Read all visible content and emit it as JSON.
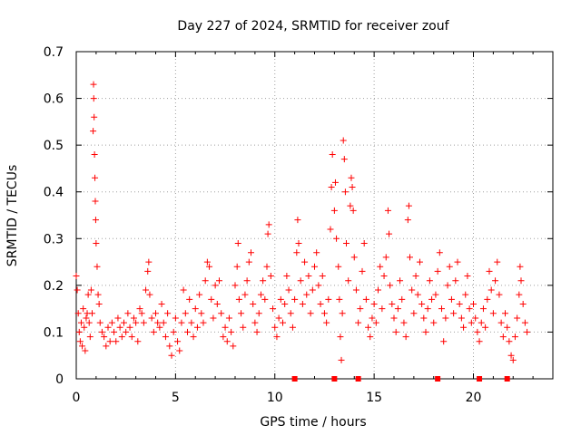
{
  "chart_data": {
    "type": "scatter",
    "title": "Day 227 of 2024, SRMTID for receiver zouf",
    "xlabel": "GPS time / hours",
    "ylabel": "SRMTID / TECUs",
    "xlim": [
      0,
      24
    ],
    "ylim": [
      0,
      0.7
    ],
    "x_ticks": [
      0,
      5,
      10,
      15,
      20
    ],
    "y_ticks": [
      0,
      0.1,
      0.2,
      0.3,
      0.4,
      0.5,
      0.6,
      0.7
    ],
    "x_tick_labels": [
      "0",
      "5",
      "10",
      "15",
      "20"
    ],
    "y_tick_labels": [
      "0",
      "0.1",
      "0.2",
      "0.3",
      "0.4",
      "0.5",
      "0.6",
      "0.7"
    ],
    "grid": true,
    "marker": "plus",
    "color": "#ff0000",
    "series": [
      {
        "name": "SRMTID",
        "points": [
          [
            0.0,
            0.22
          ],
          [
            0.05,
            0.19
          ],
          [
            0.1,
            0.14
          ],
          [
            0.15,
            0.1
          ],
          [
            0.2,
            0.08
          ],
          [
            0.25,
            0.12
          ],
          [
            0.3,
            0.07
          ],
          [
            0.35,
            0.15
          ],
          [
            0.4,
            0.11
          ],
          [
            0.45,
            0.06
          ],
          [
            0.5,
            0.13
          ],
          [
            0.55,
            0.14
          ],
          [
            0.6,
            0.18
          ],
          [
            0.65,
            0.12
          ],
          [
            0.7,
            0.09
          ],
          [
            0.75,
            0.19
          ],
          [
            0.8,
            0.14
          ],
          [
            0.85,
            0.53
          ],
          [
            0.87,
            0.63
          ],
          [
            0.88,
            0.6
          ],
          [
            0.9,
            0.56
          ],
          [
            0.92,
            0.48
          ],
          [
            0.94,
            0.43
          ],
          [
            0.96,
            0.38
          ],
          [
            0.98,
            0.34
          ],
          [
            1.0,
            0.29
          ],
          [
            1.05,
            0.24
          ],
          [
            1.1,
            0.18
          ],
          [
            1.15,
            0.16
          ],
          [
            1.2,
            0.12
          ],
          [
            1.3,
            0.1
          ],
          [
            1.4,
            0.09
          ],
          [
            1.5,
            0.07
          ],
          [
            1.6,
            0.11
          ],
          [
            1.7,
            0.08
          ],
          [
            1.8,
            0.12
          ],
          [
            1.9,
            0.1
          ],
          [
            2.0,
            0.08
          ],
          [
            2.1,
            0.13
          ],
          [
            2.2,
            0.11
          ],
          [
            2.3,
            0.09
          ],
          [
            2.4,
            0.12
          ],
          [
            2.5,
            0.1
          ],
          [
            2.6,
            0.14
          ],
          [
            2.7,
            0.11
          ],
          [
            2.8,
            0.09
          ],
          [
            2.9,
            0.13
          ],
          [
            3.0,
            0.12
          ],
          [
            3.1,
            0.08
          ],
          [
            3.2,
            0.15
          ],
          [
            3.3,
            0.14
          ],
          [
            3.4,
            0.12
          ],
          [
            3.5,
            0.19
          ],
          [
            3.6,
            0.23
          ],
          [
            3.65,
            0.25
          ],
          [
            3.7,
            0.18
          ],
          [
            3.8,
            0.13
          ],
          [
            3.9,
            0.1
          ],
          [
            4.0,
            0.14
          ],
          [
            4.1,
            0.12
          ],
          [
            4.2,
            0.11
          ],
          [
            4.3,
            0.16
          ],
          [
            4.4,
            0.12
          ],
          [
            4.5,
            0.09
          ],
          [
            4.6,
            0.14
          ],
          [
            4.7,
            0.07
          ],
          [
            4.8,
            0.05
          ],
          [
            4.9,
            0.1
          ],
          [
            5.0,
            0.13
          ],
          [
            5.1,
            0.08
          ],
          [
            5.2,
            0.06
          ],
          [
            5.3,
            0.12
          ],
          [
            5.4,
            0.19
          ],
          [
            5.5,
            0.14
          ],
          [
            5.6,
            0.1
          ],
          [
            5.7,
            0.17
          ],
          [
            5.8,
            0.12
          ],
          [
            5.9,
            0.09
          ],
          [
            6.0,
            0.15
          ],
          [
            6.1,
            0.11
          ],
          [
            6.2,
            0.18
          ],
          [
            6.3,
            0.14
          ],
          [
            6.4,
            0.12
          ],
          [
            6.5,
            0.21
          ],
          [
            6.6,
            0.25
          ],
          [
            6.7,
            0.24
          ],
          [
            6.8,
            0.17
          ],
          [
            6.9,
            0.13
          ],
          [
            7.0,
            0.2
          ],
          [
            7.1,
            0.16
          ],
          [
            7.2,
            0.21
          ],
          [
            7.3,
            0.14
          ],
          [
            7.4,
            0.09
          ],
          [
            7.5,
            0.11
          ],
          [
            7.6,
            0.08
          ],
          [
            7.7,
            0.13
          ],
          [
            7.8,
            0.1
          ],
          [
            7.9,
            0.07
          ],
          [
            8.0,
            0.2
          ],
          [
            8.1,
            0.24
          ],
          [
            8.15,
            0.29
          ],
          [
            8.2,
            0.17
          ],
          [
            8.3,
            0.14
          ],
          [
            8.4,
            0.11
          ],
          [
            8.5,
            0.18
          ],
          [
            8.6,
            0.21
          ],
          [
            8.7,
            0.25
          ],
          [
            8.8,
            0.27
          ],
          [
            8.9,
            0.16
          ],
          [
            9.0,
            0.12
          ],
          [
            9.1,
            0.1
          ],
          [
            9.2,
            0.14
          ],
          [
            9.3,
            0.18
          ],
          [
            9.4,
            0.21
          ],
          [
            9.5,
            0.17
          ],
          [
            9.6,
            0.24
          ],
          [
            9.65,
            0.31
          ],
          [
            9.7,
            0.33
          ],
          [
            9.8,
            0.22
          ],
          [
            9.9,
            0.15
          ],
          [
            10.0,
            0.11
          ],
          [
            10.1,
            0.09
          ],
          [
            10.2,
            0.13
          ],
          [
            10.3,
            0.17
          ],
          [
            10.4,
            0.12
          ],
          [
            10.5,
            0.16
          ],
          [
            10.6,
            0.22
          ],
          [
            10.7,
            0.19
          ],
          [
            10.8,
            0.14
          ],
          [
            10.9,
            0.11
          ],
          [
            11.0,
            0.17
          ],
          [
            11.1,
            0.27
          ],
          [
            11.15,
            0.34
          ],
          [
            11.2,
            0.29
          ],
          [
            11.3,
            0.21
          ],
          [
            11.4,
            0.16
          ],
          [
            11.5,
            0.25
          ],
          [
            11.6,
            0.18
          ],
          [
            11.7,
            0.22
          ],
          [
            11.8,
            0.14
          ],
          [
            11.9,
            0.19
          ],
          [
            12.0,
            0.24
          ],
          [
            12.1,
            0.27
          ],
          [
            12.2,
            0.2
          ],
          [
            12.3,
            0.16
          ],
          [
            12.4,
            0.22
          ],
          [
            12.5,
            0.14
          ],
          [
            12.6,
            0.12
          ],
          [
            12.7,
            0.17
          ],
          [
            12.8,
            0.32
          ],
          [
            12.85,
            0.41
          ],
          [
            12.9,
            0.48
          ],
          [
            13.0,
            0.36
          ],
          [
            13.05,
            0.42
          ],
          [
            13.1,
            0.3
          ],
          [
            13.2,
            0.24
          ],
          [
            13.25,
            0.17
          ],
          [
            13.3,
            0.09
          ],
          [
            13.35,
            0.04
          ],
          [
            13.4,
            0.14
          ],
          [
            13.45,
            0.51
          ],
          [
            13.5,
            0.47
          ],
          [
            13.55,
            0.4
          ],
          [
            13.6,
            0.29
          ],
          [
            13.7,
            0.21
          ],
          [
            13.8,
            0.37
          ],
          [
            13.85,
            0.43
          ],
          [
            13.9,
            0.41
          ],
          [
            13.95,
            0.36
          ],
          [
            14.0,
            0.26
          ],
          [
            14.1,
            0.19
          ],
          [
            14.2,
            0.12
          ],
          [
            14.3,
            0.15
          ],
          [
            14.4,
            0.23
          ],
          [
            14.5,
            0.29
          ],
          [
            14.6,
            0.17
          ],
          [
            14.7,
            0.11
          ],
          [
            14.8,
            0.09
          ],
          [
            14.9,
            0.13
          ],
          [
            15.0,
            0.16
          ],
          [
            15.1,
            0.12
          ],
          [
            15.2,
            0.19
          ],
          [
            15.3,
            0.24
          ],
          [
            15.4,
            0.15
          ],
          [
            15.5,
            0.22
          ],
          [
            15.6,
            0.26
          ],
          [
            15.7,
            0.36
          ],
          [
            15.75,
            0.31
          ],
          [
            15.8,
            0.2
          ],
          [
            15.9,
            0.16
          ],
          [
            16.0,
            0.13
          ],
          [
            16.1,
            0.1
          ],
          [
            16.2,
            0.15
          ],
          [
            16.3,
            0.21
          ],
          [
            16.4,
            0.17
          ],
          [
            16.5,
            0.12
          ],
          [
            16.6,
            0.09
          ],
          [
            16.7,
            0.34
          ],
          [
            16.75,
            0.37
          ],
          [
            16.8,
            0.26
          ],
          [
            16.9,
            0.19
          ],
          [
            17.0,
            0.14
          ],
          [
            17.1,
            0.22
          ],
          [
            17.2,
            0.18
          ],
          [
            17.3,
            0.25
          ],
          [
            17.4,
            0.16
          ],
          [
            17.5,
            0.13
          ],
          [
            17.6,
            0.1
          ],
          [
            17.7,
            0.15
          ],
          [
            17.8,
            0.21
          ],
          [
            17.9,
            0.17
          ],
          [
            18.0,
            0.12
          ],
          [
            18.1,
            0.18
          ],
          [
            18.2,
            0.23
          ],
          [
            18.3,
            0.27
          ],
          [
            18.4,
            0.15
          ],
          [
            18.5,
            0.08
          ],
          [
            18.6,
            0.13
          ],
          [
            18.7,
            0.2
          ],
          [
            18.8,
            0.24
          ],
          [
            18.9,
            0.17
          ],
          [
            19.0,
            0.14
          ],
          [
            19.1,
            0.21
          ],
          [
            19.2,
            0.25
          ],
          [
            19.3,
            0.16
          ],
          [
            19.4,
            0.13
          ],
          [
            19.5,
            0.11
          ],
          [
            19.6,
            0.18
          ],
          [
            19.7,
            0.22
          ],
          [
            19.8,
            0.15
          ],
          [
            19.9,
            0.12
          ],
          [
            20.0,
            0.16
          ],
          [
            20.1,
            0.13
          ],
          [
            20.2,
            0.1
          ],
          [
            20.3,
            0.08
          ],
          [
            20.4,
            0.12
          ],
          [
            20.5,
            0.15
          ],
          [
            20.6,
            0.11
          ],
          [
            20.7,
            0.17
          ],
          [
            20.8,
            0.23
          ],
          [
            20.9,
            0.19
          ],
          [
            21.0,
            0.14
          ],
          [
            21.1,
            0.21
          ],
          [
            21.2,
            0.25
          ],
          [
            21.3,
            0.18
          ],
          [
            21.4,
            0.12
          ],
          [
            21.5,
            0.09
          ],
          [
            21.6,
            0.14
          ],
          [
            21.7,
            0.11
          ],
          [
            21.8,
            0.08
          ],
          [
            21.9,
            0.05
          ],
          [
            22.0,
            0.04
          ],
          [
            22.1,
            0.09
          ],
          [
            22.2,
            0.13
          ],
          [
            22.3,
            0.18
          ],
          [
            22.35,
            0.24
          ],
          [
            22.4,
            0.21
          ],
          [
            22.5,
            0.16
          ],
          [
            22.6,
            0.12
          ],
          [
            22.7,
            0.1
          ]
        ]
      }
    ],
    "bottom_markers": [
      11.0,
      13.0,
      14.2,
      18.2,
      20.3,
      21.7
    ]
  }
}
